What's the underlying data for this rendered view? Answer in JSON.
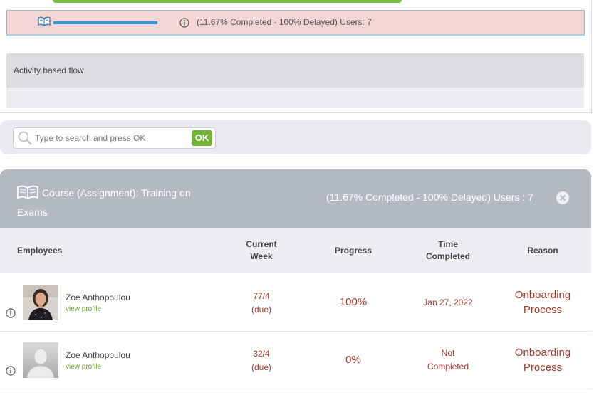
{
  "top_card": {
    "progress_fraction": 0.1167,
    "status_text": "(11.67% Completed - 100% Delayed) Users: 7",
    "flow_label": "Activity based flow"
  },
  "search": {
    "placeholder": "Type to search and press OK",
    "value": "",
    "ok_label": "OK"
  },
  "course": {
    "title": "Course (Assignment): Training on Exams",
    "status": "(11.67% Completed - 100% Delayed) Users : 7"
  },
  "table": {
    "headers": {
      "employees": "Employees",
      "current_week_1": "Current",
      "current_week_2": "Week",
      "progress": "Progress",
      "time_completed_1": "Time",
      "time_completed_2": "Completed",
      "reason": "Reason"
    },
    "rows": [
      {
        "name": "Zoe Anthopoulou",
        "link": "view profile",
        "week": "77/4",
        "week_note": "(due)",
        "progress": "100%",
        "time_1": "Jan 27, 2022",
        "time_2": "",
        "reason_1": "Onboarding",
        "reason_2": "Process",
        "has_photo": true
      },
      {
        "name": "Zoe Anthopoulou",
        "link": "view profile",
        "week": "32/4",
        "week_note": "(due)",
        "progress": "0%",
        "time_1": "Not",
        "time_2": "Completed",
        "reason_1": "Onboarding",
        "reason_2": "Process",
        "has_photo": false
      }
    ]
  },
  "colors": {
    "accent_green": "#72b43a",
    "progress_blue": "#2f97d8",
    "delayed_pink": "#f2d6d6",
    "header_grey": "#b4bac3",
    "value_red": "#a53a2b"
  },
  "icons": [
    "book-icon",
    "info-icon",
    "search-icon",
    "close-icon",
    "avatar-placeholder-icon"
  ]
}
